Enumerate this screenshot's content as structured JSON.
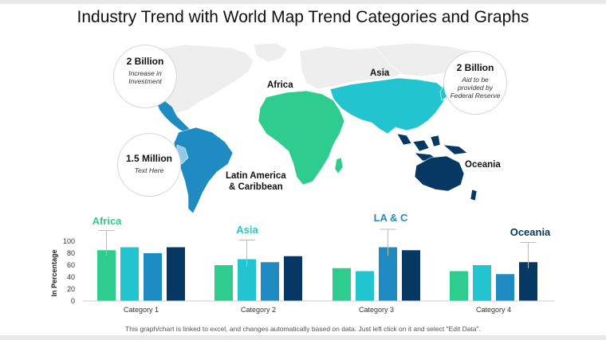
{
  "title": "Industry Trend with World Map Trend Categories and Graphs",
  "callouts": [
    {
      "value": "2 Billion",
      "text": "Increase in Investment"
    },
    {
      "value": "1.5 Million",
      "text": "Text Here"
    },
    {
      "value": "2 Billion",
      "text": "Aid to be provided by Federal Reserve"
    }
  ],
  "regions": {
    "africa": "Africa",
    "asia": "Asia",
    "latin_america_line1": "Latin America",
    "latin_america_line2": "& Caribbean",
    "oceania": "Oceania"
  },
  "colors": {
    "green": "#2ecc8f",
    "teal": "#22c4cf",
    "blue": "#1e8bc3",
    "navy": "#073763",
    "map_grey": "#eeeeee"
  },
  "chart_data": {
    "type": "bar",
    "ylabel": "In Percentage",
    "ylim": [
      0,
      100
    ],
    "yticks": [
      0,
      20,
      40,
      60,
      80,
      100
    ],
    "categories": [
      "Category 1",
      "Category 2",
      "Category 3",
      "Category 4"
    ],
    "series": [
      {
        "color": "#2ecc8f",
        "values": [
          85,
          60,
          55,
          50
        ]
      },
      {
        "color": "#22c4cf",
        "values": [
          90,
          70,
          50,
          60
        ]
      },
      {
        "color": "#1e8bc3",
        "values": [
          80,
          65,
          90,
          45
        ]
      },
      {
        "color": "#073763",
        "values": [
          90,
          75,
          85,
          65
        ]
      }
    ],
    "group_labels": [
      {
        "text": "Africa",
        "color": "#2ecc8f"
      },
      {
        "text": "Asia",
        "color": "#22c4cf"
      },
      {
        "text": "LA & C",
        "color": "#1e8bc3"
      },
      {
        "text": "Oceania",
        "color": "#073763"
      }
    ],
    "error_bars": [
      {
        "category": "Category 1",
        "series": 0,
        "value": 85,
        "low": 76,
        "high": 118
      },
      {
        "category": "Category 2",
        "series": 1,
        "value": 70,
        "low": 57,
        "high": 102
      },
      {
        "category": "Category 3",
        "series": 2,
        "value": 90,
        "low": 76,
        "high": 120
      },
      {
        "category": "Category 4",
        "series": 3,
        "value": 65,
        "low": 55,
        "high": 98
      }
    ]
  },
  "footnote": "This graph/chart is linked to excel, and changes automatically based on data. Just left click on it and select \"Edit Data\"."
}
